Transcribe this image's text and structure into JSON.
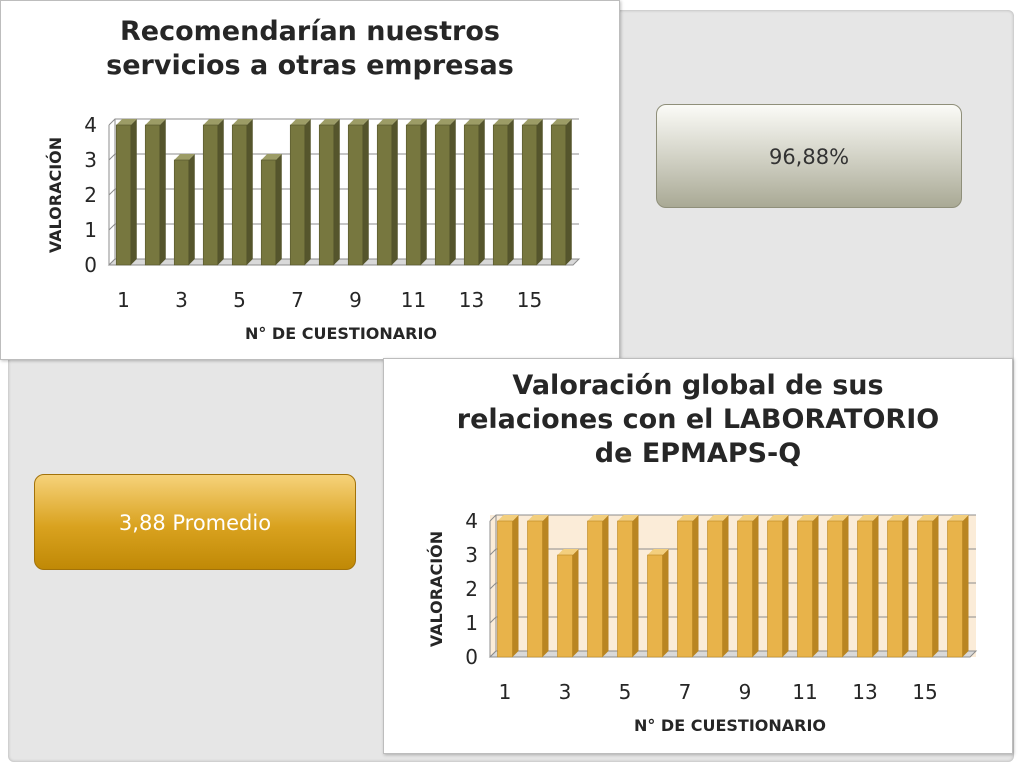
{
  "summary": {
    "percent_label": "96,88%",
    "average_label": "3,88 Promedio",
    "percent_color": "#cfcfc2",
    "average_color": "#d9a21f"
  },
  "chart_data": [
    {
      "type": "bar",
      "title": "Recomendarían nuestros\nservicios a otras empresas",
      "xlabel": "N° DE CUESTIONARIO",
      "ylabel": "VALORACIÓN",
      "categories": [
        1,
        2,
        3,
        4,
        5,
        6,
        7,
        8,
        9,
        10,
        11,
        12,
        13,
        14,
        15,
        16
      ],
      "x_tick_labels": [
        "1",
        "3",
        "5",
        "7",
        "9",
        "11",
        "13",
        "15"
      ],
      "y_tick_labels": [
        "0",
        "1",
        "2",
        "3",
        "4"
      ],
      "values": [
        4,
        4,
        3,
        4,
        4,
        3,
        4,
        4,
        4,
        4,
        4,
        4,
        4,
        4,
        4,
        4
      ],
      "ylim": [
        0,
        4
      ],
      "grid": true,
      "legend": "none",
      "bar_color": "#77773f",
      "bar_top_color": "#9c9c66",
      "bar_side_color": "#55552c"
    },
    {
      "type": "bar",
      "title": "Valoración global de sus\nrelaciones con el LABORATORIO\nde EPMAPS-Q",
      "xlabel": "N° DE CUESTIONARIO",
      "ylabel": "VALORACIÓN",
      "categories": [
        1,
        2,
        3,
        4,
        5,
        6,
        7,
        8,
        9,
        10,
        11,
        12,
        13,
        14,
        15,
        16
      ],
      "x_tick_labels": [
        "1",
        "3",
        "5",
        "7",
        "9",
        "11",
        "13",
        "15"
      ],
      "y_tick_labels": [
        "0",
        "1",
        "2",
        "3",
        "4"
      ],
      "values": [
        4,
        4,
        3,
        4,
        4,
        3,
        4,
        4,
        4,
        4,
        4,
        4,
        4,
        4,
        4,
        4
      ],
      "ylim": [
        0,
        4
      ],
      "grid": true,
      "legend": "none",
      "bar_color": "#e8b34a",
      "bar_top_color": "#f3cf7e",
      "bar_side_color": "#b98522",
      "plot_background": "#fbecd8"
    }
  ]
}
